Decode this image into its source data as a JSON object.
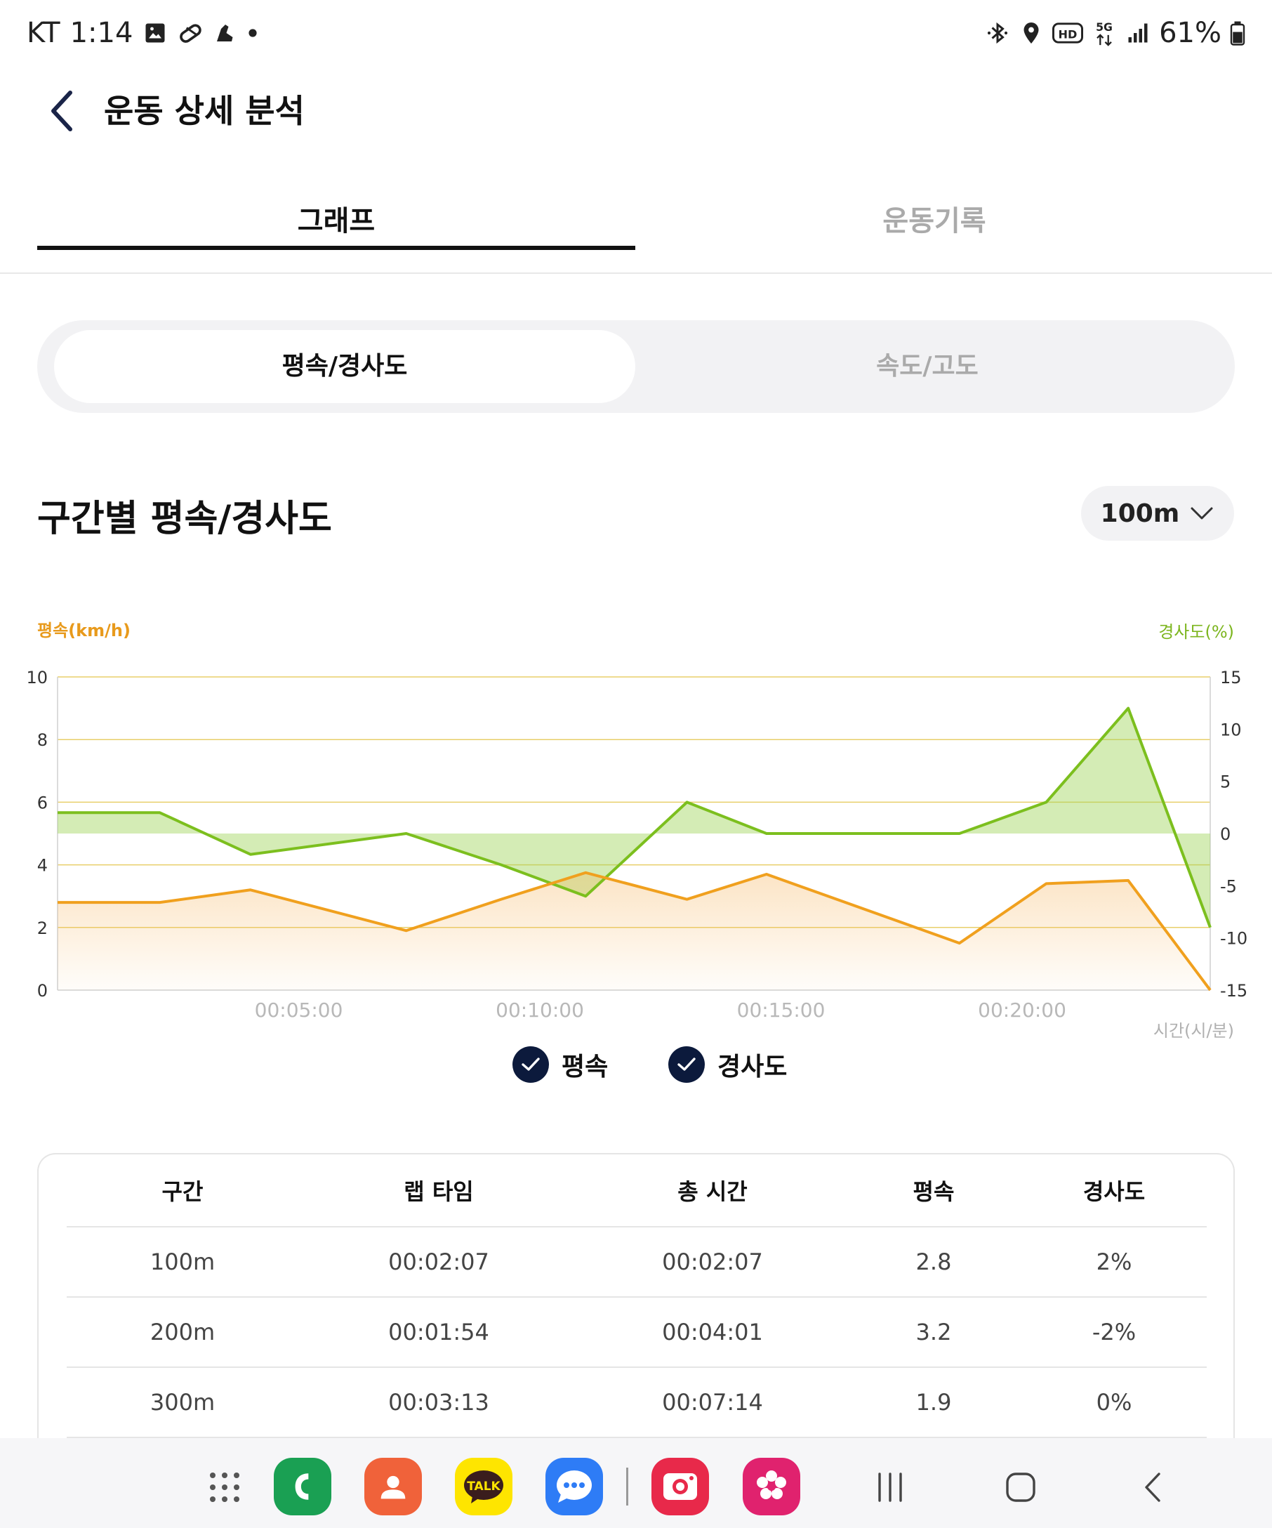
{
  "status_bar": {
    "carrier": "KT",
    "time": "1:14",
    "battery": "61%",
    "left_icons": [
      "image-icon",
      "pill-icon",
      "shoe-icon",
      "dot-icon"
    ],
    "right_icons": [
      "bluetooth-icon",
      "location-icon",
      "hd-icon",
      "5g-icon",
      "signal-icon",
      "battery-icon"
    ]
  },
  "header": {
    "title": "운동 상세 분석"
  },
  "tabs": [
    {
      "label": "그래프",
      "active": true
    },
    {
      "label": "운동기록",
      "active": false
    }
  ],
  "segment": [
    {
      "label": "평속/경사도",
      "active": true
    },
    {
      "label": "속도/고도",
      "active": false
    }
  ],
  "section": {
    "title": "구간별 평속/경사도",
    "interval": "100m"
  },
  "chart_data": {
    "type": "line",
    "left_axis_label": "평속(km/h)",
    "right_axis_label": "경사도(%)",
    "x_axis_label": "시간(시/분)",
    "left_ylim": [
      0,
      10
    ],
    "right_ylim": [
      -15,
      15
    ],
    "left_ticks": [
      "10",
      "8",
      "6",
      "4",
      "2",
      "0"
    ],
    "right_ticks": [
      "15",
      "10",
      "5",
      "0",
      "-5",
      "-10",
      "-15"
    ],
    "x_ticks": [
      "00:05:00",
      "00:10:00",
      "00:15:00",
      "00:20:00"
    ],
    "x_tick_minutes": [
      5,
      10,
      15,
      20
    ],
    "x_range_minutes": [
      0,
      23.9
    ],
    "grid": true,
    "colors": {
      "speed": "#f0a01e",
      "slope": "#7cbf1e",
      "grid": "#e8cf6a"
    },
    "series": [
      {
        "name": "평속",
        "axis": "left",
        "x_minutes": [
          0,
          2.12,
          4.0,
          7.23,
          9.2,
          10.95,
          13.05,
          14.7,
          18.7,
          20.5,
          22.2,
          23.9
        ],
        "values": [
          2.8,
          2.8,
          3.2,
          1.9,
          2.9,
          3.75,
          2.9,
          3.7,
          1.5,
          3.4,
          3.5,
          0
        ]
      },
      {
        "name": "경사도",
        "axis": "right",
        "x_minutes": [
          0,
          2.12,
          4.0,
          7.23,
          9.2,
          10.95,
          13.05,
          14.7,
          18.7,
          20.5,
          22.2,
          23.9
        ],
        "values": [
          2,
          2,
          -2,
          0,
          -3,
          -6,
          3,
          0,
          0,
          3,
          12,
          -9
        ]
      }
    ]
  },
  "legend": [
    {
      "label": "평속",
      "checked": true
    },
    {
      "label": "경사도",
      "checked": true
    }
  ],
  "table": {
    "headers": [
      "구간",
      "랩 타임",
      "총 시간",
      "평속",
      "경사도"
    ],
    "rows": [
      [
        "100m",
        "00:02:07",
        "00:02:07",
        "2.8",
        "2%"
      ],
      [
        "200m",
        "00:01:54",
        "00:04:01",
        "3.2",
        "-2%"
      ],
      [
        "300m",
        "00:03:13",
        "00:07:14",
        "1.9",
        "0%"
      ]
    ]
  },
  "nav": {
    "apps": [
      {
        "name": "apps-grid-icon",
        "color": "#555555"
      },
      {
        "name": "phone-app-icon",
        "color": "#1aa053"
      },
      {
        "name": "contacts-app-icon",
        "color": "#f0623a"
      },
      {
        "name": "kakaotalk-app-icon",
        "color": "#fee500",
        "label": "TALK"
      },
      {
        "name": "messages-app-icon",
        "color": "#2e7cf6"
      },
      {
        "name": "screen-recorder-app-icon",
        "color": "#e8294a"
      },
      {
        "name": "gallery-app-icon",
        "color": "#e0226e"
      }
    ]
  }
}
